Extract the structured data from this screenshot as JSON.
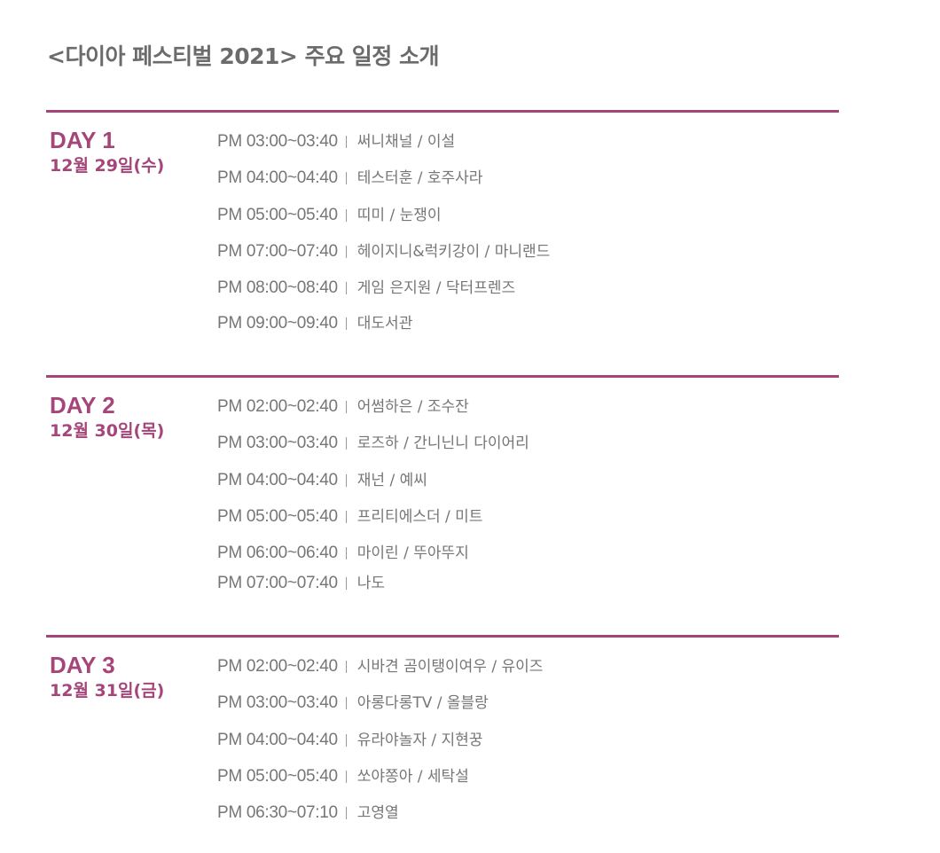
{
  "title": "<다이아 페스티벌 2021> 주요 일정 소개",
  "accent_color": "#a5457a",
  "days": [
    {
      "label": "DAY 1",
      "date": "12월 29일(수)",
      "items": [
        {
          "time": "PM 03:00~03:40",
          "name": "써니채널 / 이설"
        },
        {
          "time": "PM 04:00~04:40",
          "name": "테스터훈 / 호주사라"
        },
        {
          "time": "PM 05:00~05:40",
          "name": "띠미 / 눈쟁이"
        },
        {
          "time": "PM 07:00~07:40",
          "name": "헤이지니&럭키강이 / 마니랜드"
        },
        {
          "time": "PM 08:00~08:40",
          "name": "게임 은지원 / 닥터프렌즈"
        },
        {
          "time": "PM 09:00~09:40",
          "name": "대도서관"
        }
      ]
    },
    {
      "label": "DAY 2",
      "date": "12월 30일(목)",
      "items": [
        {
          "time": "PM 02:00~02:40",
          "name": "어썸하은 / 조수잔"
        },
        {
          "time": "PM 03:00~03:40",
          "name": "로즈하 / 간니닌니 다이어리"
        },
        {
          "time": "PM 04:00~04:40",
          "name": "재넌 / 예씨"
        },
        {
          "time": "PM 05:00~05:40",
          "name": "프리티에스더 / 미트"
        },
        {
          "time": "PM 06:00~06:40",
          "name": "마이린 / 뚜아뚜지"
        },
        {
          "time": "PM 07:00~07:40",
          "name": "나도"
        }
      ]
    },
    {
      "label": "DAY 3",
      "date": "12월 31일(금)",
      "items": [
        {
          "time": "PM 02:00~02:40",
          "name": "시바견 곰이탱이여우 / 유이즈"
        },
        {
          "time": "PM 03:00~03:40",
          "name": "아롱다롱TV / 올블랑"
        },
        {
          "time": "PM 04:00~04:40",
          "name": "유라야놀자 / 지현꿍"
        },
        {
          "time": "PM 05:00~05:40",
          "name": "쏘야쫑아 / 세탁설"
        },
        {
          "time": "PM 06:30~07:10",
          "name": "고영열"
        }
      ]
    }
  ]
}
